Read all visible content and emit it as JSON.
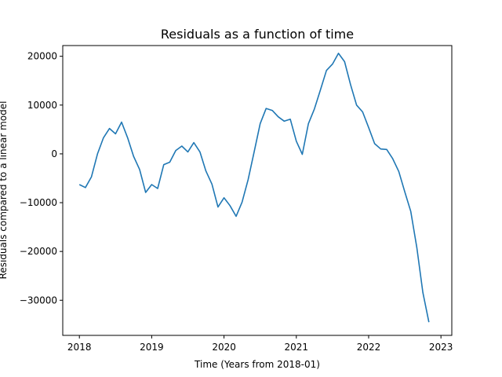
{
  "chart_data": {
    "type": "line",
    "title": "Residuals as a function of time",
    "xlabel": "Time (Years from 2018-01)",
    "ylabel": "Residuals compared to a linear model",
    "xlim": [
      2017.77,
      2023.15
    ],
    "ylim": [
      -37200,
      22200
    ],
    "xticks": [
      2018,
      2019,
      2020,
      2021,
      2022,
      2023
    ],
    "xtick_labels": [
      "2018",
      "2019",
      "2020",
      "2021",
      "2022",
      "2023"
    ],
    "yticks": [
      -30000,
      -20000,
      -10000,
      0,
      10000,
      20000
    ],
    "ytick_labels": [
      "−30000",
      "−20000",
      "−10000",
      "0",
      "10000",
      "20000"
    ],
    "grid": false,
    "series": [
      {
        "color": "#1f77b4",
        "x": [
          2018.0,
          2018.083,
          2018.167,
          2018.25,
          2018.333,
          2018.417,
          2018.5,
          2018.583,
          2018.667,
          2018.75,
          2018.833,
          2018.917,
          2019.0,
          2019.083,
          2019.167,
          2019.25,
          2019.333,
          2019.417,
          2019.5,
          2019.583,
          2019.667,
          2019.75,
          2019.833,
          2019.917,
          2020.0,
          2020.083,
          2020.167,
          2020.25,
          2020.333,
          2020.417,
          2020.5,
          2020.583,
          2020.667,
          2020.75,
          2020.833,
          2020.917,
          2021.0,
          2021.083,
          2021.167,
          2021.25,
          2021.333,
          2021.417,
          2021.5,
          2021.583,
          2021.667,
          2021.75,
          2021.833,
          2021.917,
          2022.0,
          2022.083,
          2022.167,
          2022.25,
          2022.333,
          2022.417,
          2022.5,
          2022.583,
          2022.667,
          2022.75,
          2022.833
        ],
        "values": [
          -6300,
          -6900,
          -4700,
          0,
          3300,
          5200,
          4100,
          6500,
          3300,
          -500,
          -3200,
          -7900,
          -6300,
          -7100,
          -2200,
          -1700,
          700,
          1600,
          400,
          2300,
          400,
          -3500,
          -6200,
          -10900,
          -9000,
          -10600,
          -12800,
          -9900,
          -5300,
          400,
          6200,
          9300,
          8900,
          7600,
          6700,
          7100,
          2600,
          -100,
          6200,
          9200,
          13100,
          17100,
          18400,
          20600,
          18900,
          14200,
          10000,
          8600,
          5400,
          2100,
          1000,
          900,
          -1000,
          -3600,
          -7800,
          -11800,
          -19300,
          -28400,
          -34500
        ]
      }
    ]
  }
}
